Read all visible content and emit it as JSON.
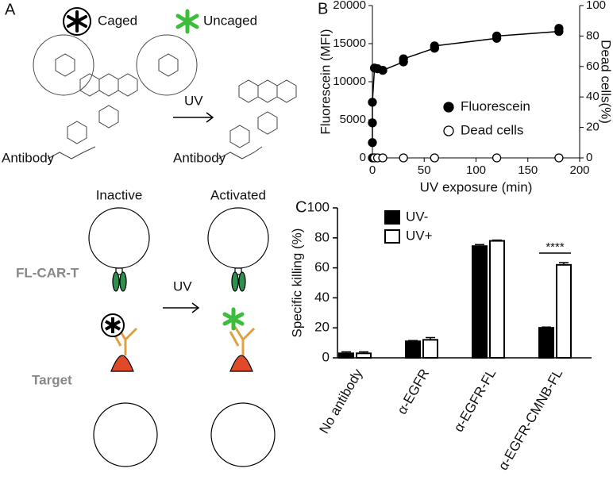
{
  "panel_a": {
    "label": "A",
    "legend": [
      "Caged",
      "Uncaged"
    ],
    "reaction": {
      "arrow_label": "UV",
      "left": "Antibody",
      "right": "Antibody"
    },
    "scheme": {
      "states": [
        "Inactive",
        "Activated"
      ],
      "cell_labels": [
        "FL-CAR-T",
        "Target"
      ],
      "arrow_label": "UV"
    }
  },
  "chart_data": [
    {
      "type": "scatter",
      "panel": "B",
      "xlabel": "UV exposure (min)",
      "ylabel": "Fluorescein (MFI)",
      "y2label": "Dead cells(%)",
      "xlim": [
        0,
        200
      ],
      "xticks": [
        0,
        50,
        100,
        150,
        200
      ],
      "ylim": [
        0,
        20000
      ],
      "yticks": [
        0,
        5000,
        10000,
        15000,
        20000
      ],
      "y2lim": [
        0,
        100
      ],
      "y2ticks": [
        0,
        20,
        40,
        60,
        80,
        100
      ],
      "legend": "lower right",
      "series": [
        {
          "name": "Fluorescein",
          "color": "#000000",
          "marker": "filled",
          "line": true,
          "x": [
            0,
            0,
            0,
            2,
            5,
            10,
            30,
            30,
            60,
            60,
            120,
            120,
            180,
            180
          ],
          "values": [
            2000,
            4600,
            7300,
            11800,
            11700,
            11500,
            12600,
            13000,
            14400,
            14700,
            15700,
            16000,
            16600,
            17000
          ]
        },
        {
          "name": "Dead cells",
          "color": "#000000",
          "marker": "open",
          "axis": "y2",
          "x": [
            0,
            1,
            2,
            5,
            10,
            30,
            60,
            120,
            180
          ],
          "values": [
            0,
            0,
            0,
            0,
            0,
            0,
            0,
            0,
            0
          ]
        }
      ]
    },
    {
      "type": "bar",
      "panel": "C",
      "ylabel": "Specific killing (%)",
      "categories": [
        "No antibody",
        "α-EGFR",
        "α-EGFR-FL",
        "α-EGFR-CMNB-FL"
      ],
      "ylim": [
        0,
        100
      ],
      "yticks": [
        0,
        20,
        40,
        60,
        80,
        100
      ],
      "legend": "upper left",
      "series": [
        {
          "name": "UV-",
          "color": "#000000",
          "values": [
            3,
            11,
            74.5,
            20
          ],
          "errors": [
            1,
            0.5,
            1,
            0.5
          ]
        },
        {
          "name": "UV+",
          "color": "#ffffff",
          "values": [
            3,
            12,
            78,
            62
          ],
          "errors": [
            1,
            1.5,
            0.5,
            1.5
          ]
        }
      ],
      "annotation": "****"
    }
  ]
}
